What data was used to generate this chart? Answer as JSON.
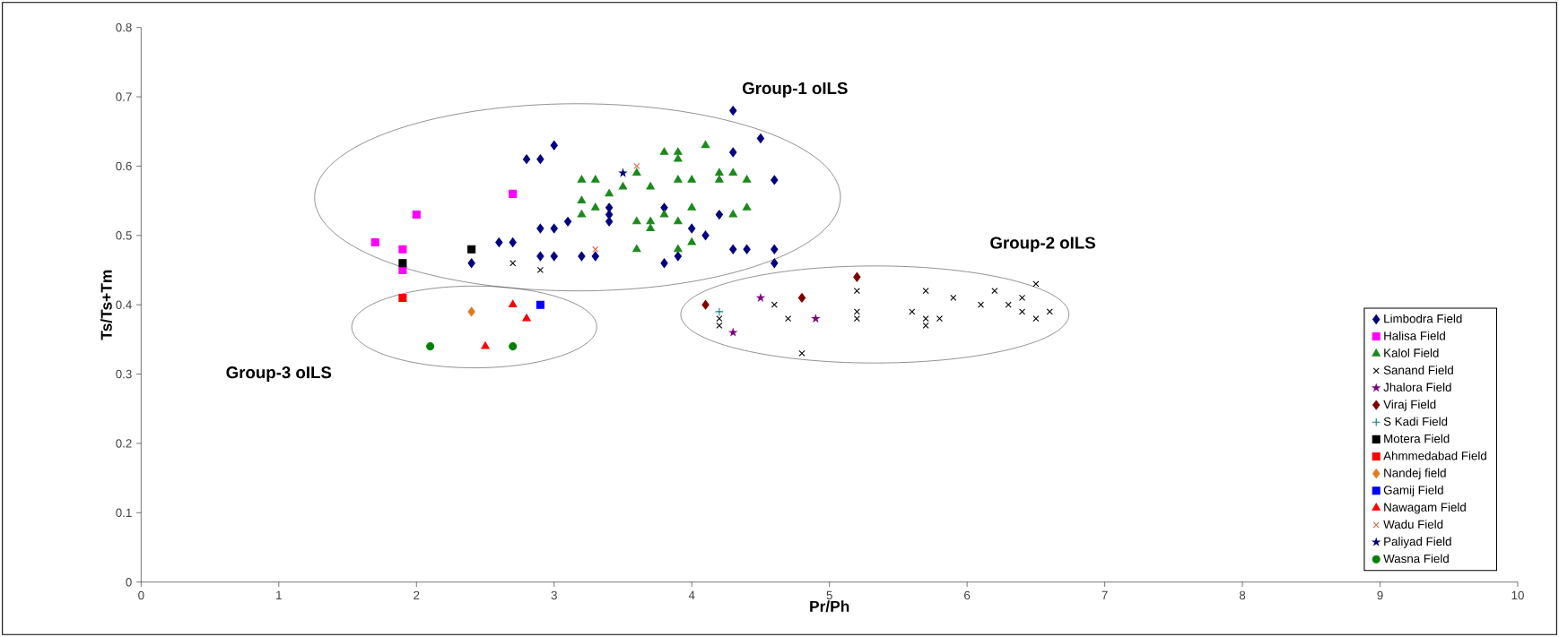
{
  "chart_data": {
    "type": "scatter",
    "xlabel": "Pr/Ph",
    "ylabel": "Ts/Ts+Tm",
    "xlim": [
      0,
      10
    ],
    "ylim": [
      0,
      0.8
    ],
    "xticks": [
      0,
      1,
      2,
      3,
      4,
      5,
      6,
      7,
      8,
      9,
      10
    ],
    "yticks": [
      0,
      0.1,
      0.2,
      0.3,
      0.4,
      0.5,
      0.6,
      0.7,
      0.8
    ],
    "grid": false,
    "legend": "bottom right",
    "annotations": [
      "Group-1 oILS",
      "Group-2 oILS",
      "Group-3 oILS"
    ],
    "series": [
      {
        "name": "Limbodra Field",
        "color": "#000080",
        "marker": "diamond",
        "x": [
          4.3,
          4.5,
          3.0,
          2.8,
          2.9,
          4.3,
          4.6,
          3.4,
          3.4,
          3.4,
          3.1,
          2.9,
          3.0,
          2.6,
          2.7,
          3.8,
          4.0,
          4.1,
          4.2,
          3.0,
          3.2,
          3.3,
          2.9,
          2.4,
          3.8,
          3.9,
          4.3,
          4.4,
          4.6,
          4.6
        ],
        "values": [
          0.68,
          0.64,
          0.63,
          0.61,
          0.61,
          0.62,
          0.58,
          0.54,
          0.53,
          0.52,
          0.52,
          0.51,
          0.51,
          0.49,
          0.49,
          0.54,
          0.51,
          0.5,
          0.53,
          0.47,
          0.47,
          0.47,
          0.47,
          0.46,
          0.46,
          0.47,
          0.48,
          0.48,
          0.48,
          0.46
        ]
      },
      {
        "name": "Halisa Field",
        "color": "#ff00ff",
        "marker": "square",
        "x": [
          2.7,
          2.0,
          1.7,
          1.9,
          1.9
        ],
        "values": [
          0.56,
          0.53,
          0.49,
          0.48,
          0.45
        ]
      },
      {
        "name": "Kalol Field",
        "color": "#1a8a1a",
        "marker": "triangle",
        "x": [
          4.1,
          3.8,
          3.9,
          3.9,
          3.2,
          3.3,
          3.6,
          3.7,
          3.5,
          3.4,
          3.9,
          4.0,
          4.2,
          4.2,
          4.3,
          4.4,
          3.2,
          3.2,
          3.3,
          3.6,
          3.7,
          3.7,
          3.8,
          3.9,
          4.0,
          4.3,
          4.4,
          3.6,
          3.9,
          4.0
        ],
        "values": [
          0.63,
          0.62,
          0.62,
          0.61,
          0.58,
          0.58,
          0.59,
          0.57,
          0.57,
          0.56,
          0.58,
          0.58,
          0.58,
          0.59,
          0.59,
          0.58,
          0.55,
          0.53,
          0.54,
          0.52,
          0.51,
          0.52,
          0.53,
          0.52,
          0.54,
          0.53,
          0.54,
          0.48,
          0.48,
          0.49
        ]
      },
      {
        "name": "Sanand Field",
        "color": "#000000",
        "marker": "cross",
        "x": [
          2.7,
          2.9,
          4.2,
          4.2,
          4.6,
          4.7,
          4.8,
          5.2,
          5.2,
          5.2,
          5.6,
          5.7,
          5.7,
          5.7,
          5.8,
          5.9,
          6.1,
          6.2,
          6.3,
          6.4,
          6.4,
          6.5,
          6.5,
          6.6
        ],
        "values": [
          0.46,
          0.45,
          0.38,
          0.37,
          0.4,
          0.38,
          0.33,
          0.42,
          0.39,
          0.38,
          0.39,
          0.42,
          0.38,
          0.37,
          0.38,
          0.41,
          0.4,
          0.42,
          0.4,
          0.41,
          0.39,
          0.43,
          0.38,
          0.39
        ]
      },
      {
        "name": "Jhalora Field",
        "color": "#800080",
        "marker": "star",
        "x": [
          4.5,
          4.9,
          4.3
        ],
        "values": [
          0.41,
          0.38,
          0.36
        ]
      },
      {
        "name": "Viraj Field",
        "color": "#800000",
        "marker": "diamond",
        "x": [
          4.1,
          4.8,
          5.2
        ],
        "values": [
          0.4,
          0.41,
          0.44
        ]
      },
      {
        "name": "S Kadi Field",
        "color": "#008080",
        "marker": "plus",
        "x": [
          4.2
        ],
        "values": [
          0.39
        ]
      },
      {
        "name": "Motera Field",
        "color": "#000000",
        "marker": "square",
        "x": [
          2.4,
          1.9
        ],
        "values": [
          0.48,
          0.46
        ]
      },
      {
        "name": "Ahmmedabad Field",
        "color": "#ff0000",
        "marker": "square",
        "x": [
          1.9
        ],
        "values": [
          0.41
        ]
      },
      {
        "name": "Nandej field",
        "color": "#e07b20",
        "marker": "diamond",
        "x": [
          2.4
        ],
        "values": [
          0.39
        ]
      },
      {
        "name": "Gamij Field",
        "color": "#0000ff",
        "marker": "square",
        "x": [
          2.9
        ],
        "values": [
          0.4
        ]
      },
      {
        "name": "Nawagam Field",
        "color": "#ff0000",
        "marker": "triangle",
        "x": [
          2.7,
          2.8,
          2.5
        ],
        "values": [
          0.4,
          0.38,
          0.34
        ]
      },
      {
        "name": "Wadu Field",
        "color": "#e06040",
        "marker": "cross",
        "x": [
          3.6,
          3.3
        ],
        "values": [
          0.6,
          0.48
        ]
      },
      {
        "name": "Paliyad Field",
        "color": "#000080",
        "marker": "star",
        "x": [
          3.5
        ],
        "values": [
          0.59
        ]
      },
      {
        "name": "Wasna Field",
        "color": "#008000",
        "marker": "circle",
        "x": [
          2.1,
          2.7
        ],
        "values": [
          0.34,
          0.34
        ]
      }
    ]
  }
}
